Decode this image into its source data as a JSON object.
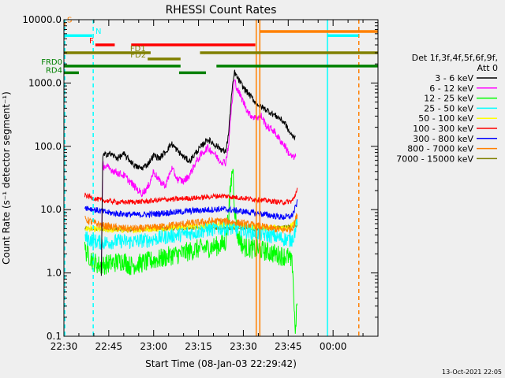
{
  "chart_data": {
    "type": "line",
    "title": "RHESSI Count Rates",
    "xlabel": "Start Time (08-Jan-03 22:29:42)",
    "ylabel": "Count Rate (s⁻¹ detector segment⁻¹)",
    "yscale": "log",
    "ylim": [
      0.1,
      10000
    ],
    "xlim_minutes_after_2230": [
      0,
      105
    ],
    "x_tick_labels": [
      "22:30",
      "22:45",
      "23:00",
      "23:15",
      "23:30",
      "23:45",
      "00:00"
    ],
    "y_tick_labels": [
      "0.1",
      "1.0",
      "10.0",
      "100.0",
      "1000.0",
      "10000.0"
    ],
    "timestamp": "13-Oct-2021 22:05",
    "legend": {
      "placement": "right",
      "header": [
        "Det 1f,3f,4f,5f,6f,9f,",
        "Att 0"
      ]
    },
    "series": [
      {
        "name": "3 - 6 keV",
        "color": "#000000",
        "start": 12.5,
        "end": 77.5,
        "points": [
          [
            12.5,
            1.0
          ],
          [
            13,
            70
          ],
          [
            15,
            78
          ],
          [
            18,
            65
          ],
          [
            20,
            75
          ],
          [
            22,
            60
          ],
          [
            24,
            48
          ],
          [
            26,
            45
          ],
          [
            28,
            52
          ],
          [
            30,
            72
          ],
          [
            32,
            65
          ],
          [
            34,
            82
          ],
          [
            36,
            110
          ],
          [
            38,
            85
          ],
          [
            40,
            68
          ],
          [
            42,
            58
          ],
          [
            44,
            78
          ],
          [
            46,
            100
          ],
          [
            48,
            130
          ],
          [
            50,
            110
          ],
          [
            52,
            95
          ],
          [
            54,
            80
          ],
          [
            55,
            150
          ],
          [
            56,
            600
          ],
          [
            57,
            1500
          ],
          [
            58,
            1200
          ],
          [
            60,
            850
          ],
          [
            62,
            650
          ],
          [
            64,
            500
          ],
          [
            66,
            420
          ],
          [
            68,
            370
          ],
          [
            70,
            320
          ],
          [
            72,
            280
          ],
          [
            74,
            230
          ],
          [
            75,
            180
          ],
          [
            76,
            150
          ],
          [
            77,
            140
          ],
          [
            77.5,
            150
          ]
        ]
      },
      {
        "name": "6 - 12 keV",
        "color": "#ff00ff",
        "start": 12.5,
        "end": 77.5,
        "points": [
          [
            12.5,
            1.0
          ],
          [
            13,
            50
          ],
          [
            15,
            45
          ],
          [
            18,
            38
          ],
          [
            20,
            35
          ],
          [
            22,
            28
          ],
          [
            24,
            22
          ],
          [
            26,
            18
          ],
          [
            28,
            22
          ],
          [
            30,
            40
          ],
          [
            32,
            28
          ],
          [
            34,
            24
          ],
          [
            36,
            45
          ],
          [
            38,
            30
          ],
          [
            40,
            28
          ],
          [
            42,
            35
          ],
          [
            44,
            55
          ],
          [
            46,
            75
          ],
          [
            48,
            95
          ],
          [
            50,
            80
          ],
          [
            52,
            60
          ],
          [
            54,
            55
          ],
          [
            55,
            100
          ],
          [
            56,
            400
          ],
          [
            57,
            1100
          ],
          [
            58,
            800
          ],
          [
            60,
            500
          ],
          [
            62,
            320
          ],
          [
            64,
            280
          ],
          [
            66,
            300
          ],
          [
            68,
            200
          ],
          [
            70,
            180
          ],
          [
            72,
            130
          ],
          [
            74,
            100
          ],
          [
            75,
            80
          ],
          [
            76,
            70
          ],
          [
            77,
            65
          ],
          [
            77.5,
            68
          ]
        ]
      },
      {
        "name": "12 - 25 keV",
        "color": "#00ff00",
        "start": 7,
        "end": 78,
        "points": [
          [
            7,
            2.3
          ],
          [
            10,
            1.5
          ],
          [
            12,
            1.3
          ],
          [
            15,
            1.4
          ],
          [
            18,
            1.5
          ],
          [
            20,
            1.6
          ],
          [
            22,
            1.3
          ],
          [
            25,
            1.4
          ],
          [
            28,
            1.5
          ],
          [
            30,
            1.6
          ],
          [
            33,
            1.7
          ],
          [
            36,
            1.9
          ],
          [
            39,
            2.0
          ],
          [
            42,
            2.2
          ],
          [
            45,
            2.4
          ],
          [
            48,
            2.5
          ],
          [
            50,
            2.6
          ],
          [
            52,
            2.7
          ],
          [
            54,
            3.0
          ],
          [
            55,
            8.0
          ],
          [
            56,
            30.0
          ],
          [
            56.5,
            50.0
          ],
          [
            57,
            12.0
          ],
          [
            58,
            4.0
          ],
          [
            60,
            2.6
          ],
          [
            63,
            2.4
          ],
          [
            66,
            2.3
          ],
          [
            69,
            2.1
          ],
          [
            72,
            1.9
          ],
          [
            75,
            1.8
          ],
          [
            76.5,
            1.3
          ],
          [
            77,
            0.25
          ],
          [
            77.5,
            0.12
          ],
          [
            78,
            0.4
          ]
        ]
      },
      {
        "name": "25 - 50 keV",
        "color": "#00ffff",
        "start": 7,
        "end": 78,
        "points": [
          [
            7,
            3.6
          ],
          [
            10,
            3.2
          ],
          [
            13,
            3.0
          ],
          [
            16,
            3.1
          ],
          [
            19,
            3.2
          ],
          [
            22,
            3.1
          ],
          [
            25,
            3.2
          ],
          [
            28,
            3.3
          ],
          [
            31,
            3.5
          ],
          [
            34,
            3.7
          ],
          [
            37,
            3.9
          ],
          [
            40,
            4.1
          ],
          [
            43,
            4.3
          ],
          [
            46,
            4.6
          ],
          [
            49,
            4.9
          ],
          [
            52,
            5.0
          ],
          [
            55,
            5.1
          ],
          [
            58,
            4.9
          ],
          [
            61,
            4.6
          ],
          [
            64,
            4.3
          ],
          [
            67,
            4.0
          ],
          [
            70,
            3.8
          ],
          [
            73,
            3.5
          ],
          [
            76,
            3.3
          ],
          [
            77,
            4.0
          ],
          [
            78,
            7.0
          ]
        ]
      },
      {
        "name": "50 - 100 keV",
        "color": "#ffff00",
        "start": 7,
        "end": 78,
        "points": [
          [
            7,
            5.0
          ],
          [
            15,
            4.8
          ],
          [
            25,
            4.8
          ],
          [
            35,
            5.2
          ],
          [
            45,
            5.5
          ],
          [
            55,
            5.8
          ],
          [
            65,
            5.3
          ],
          [
            75,
            5.0
          ],
          [
            78,
            6.5
          ]
        ]
      },
      {
        "name": "100 - 300 keV",
        "color": "#ff0000",
        "start": 7,
        "end": 78,
        "points": [
          [
            7,
            17.0
          ],
          [
            10,
            15.0
          ],
          [
            13,
            14.0
          ],
          [
            16,
            13.5
          ],
          [
            19,
            13.0
          ],
          [
            22,
            13.2
          ],
          [
            25,
            13.3
          ],
          [
            28,
            13.5
          ],
          [
            31,
            14.0
          ],
          [
            34,
            14.5
          ],
          [
            37,
            14.5
          ],
          [
            40,
            15.0
          ],
          [
            43,
            15.2
          ],
          [
            46,
            15.5
          ],
          [
            49,
            16.0
          ],
          [
            52,
            16.5
          ],
          [
            55,
            16.2
          ],
          [
            58,
            15.5
          ],
          [
            61,
            15.0
          ],
          [
            64,
            14.5
          ],
          [
            67,
            14.0
          ],
          [
            70,
            13.5
          ],
          [
            73,
            13.0
          ],
          [
            76,
            13.5
          ],
          [
            77,
            15.0
          ],
          [
            78,
            22.0
          ]
        ]
      },
      {
        "name": "300 - 800 keV",
        "color": "#0000ff",
        "start": 7,
        "end": 78,
        "points": [
          [
            7,
            11.0
          ],
          [
            10,
            10.0
          ],
          [
            13,
            9.3
          ],
          [
            16,
            8.8
          ],
          [
            19,
            8.6
          ],
          [
            22,
            8.4
          ],
          [
            25,
            8.3
          ],
          [
            28,
            8.4
          ],
          [
            31,
            8.6
          ],
          [
            34,
            8.9
          ],
          [
            37,
            9.1
          ],
          [
            40,
            9.3
          ],
          [
            43,
            9.6
          ],
          [
            46,
            9.8
          ],
          [
            49,
            10.0
          ],
          [
            52,
            10.2
          ],
          [
            55,
            10.0
          ],
          [
            58,
            9.6
          ],
          [
            61,
            9.2
          ],
          [
            64,
            8.8
          ],
          [
            67,
            8.4
          ],
          [
            70,
            8.0
          ],
          [
            73,
            7.6
          ],
          [
            76,
            7.8
          ],
          [
            77,
            9.5
          ],
          [
            78,
            13.0
          ]
        ]
      },
      {
        "name": "800 - 7000 keV",
        "color": "#ff8000",
        "start": 7,
        "end": 78,
        "points": [
          [
            7,
            7.0
          ],
          [
            10,
            6.2
          ],
          [
            13,
            5.6
          ],
          [
            16,
            5.3
          ],
          [
            19,
            5.1
          ],
          [
            22,
            5.0
          ],
          [
            25,
            5.0
          ],
          [
            28,
            5.1
          ],
          [
            31,
            5.3
          ],
          [
            34,
            5.5
          ],
          [
            37,
            5.7
          ],
          [
            40,
            5.9
          ],
          [
            43,
            6.1
          ],
          [
            46,
            6.3
          ],
          [
            49,
            6.5
          ],
          [
            52,
            6.6
          ],
          [
            55,
            6.5
          ],
          [
            58,
            6.2
          ],
          [
            61,
            5.9
          ],
          [
            64,
            5.6
          ],
          [
            67,
            5.3
          ],
          [
            70,
            5.0
          ],
          [
            73,
            4.8
          ],
          [
            76,
            4.9
          ],
          [
            77,
            6.0
          ],
          [
            78,
            8.5
          ]
        ]
      },
      {
        "name": "7000 - 15000 keV",
        "color": "#808000",
        "start": 7,
        "end": 78,
        "points": [
          [
            7,
            5.0
          ],
          [
            20,
            4.8
          ],
          [
            35,
            5.0
          ],
          [
            50,
            5.2
          ],
          [
            65,
            5.0
          ],
          [
            78,
            5.5
          ]
        ]
      }
    ],
    "flag_segments": [
      {
        "label": "S",
        "color": "#ff8000",
        "y": 8500,
        "segments": [
          [
            0,
            0.5
          ]
        ]
      },
      {
        "label": "N",
        "color": "#00ffff",
        "y": 5600,
        "segments": [
          [
            0,
            9.5
          ],
          [
            88,
            98.5
          ]
        ]
      },
      {
        "label": "F",
        "color": "#ff0000",
        "y": 4000,
        "segments": [
          [
            10.5,
            17
          ],
          [
            22.5,
            64
          ]
        ]
      },
      {
        "label": "FD1",
        "color": "#808000",
        "y": 3000,
        "segments": [
          [
            0,
            29
          ],
          [
            45.5,
            105
          ]
        ]
      },
      {
        "label": "FD2",
        "color": "#808000",
        "y": 2400,
        "segments": [
          [
            28,
            39
          ]
        ]
      },
      {
        "label": "FRD0",
        "color": "#008000",
        "y": 1850,
        "segments": [
          [
            0,
            39
          ],
          [
            51,
            105
          ]
        ]
      },
      {
        "label": "RD4",
        "color": "#008000",
        "y": 1450,
        "segments": [
          [
            0,
            5
          ],
          [
            38.5,
            47.5
          ]
        ]
      },
      {
        "label": "",
        "color": "#ff8000",
        "y": 6500,
        "segments": [
          [
            65.5,
            105
          ]
        ]
      }
    ],
    "vertical_lines": [
      {
        "color": "#00ffff",
        "style": "dashed",
        "x": 0.3
      },
      {
        "color": "#00ffff",
        "style": "dashed",
        "x": 9.8
      },
      {
        "color": "#ff8000",
        "style": "solid",
        "x": 64.3
      },
      {
        "color": "#ff8000",
        "style": "solid",
        "x": 65.5
      },
      {
        "color": "#00ffff",
        "style": "solid",
        "x": 88.1
      },
      {
        "color": "#ff8000",
        "style": "dashed",
        "x": 98.6
      }
    ]
  }
}
